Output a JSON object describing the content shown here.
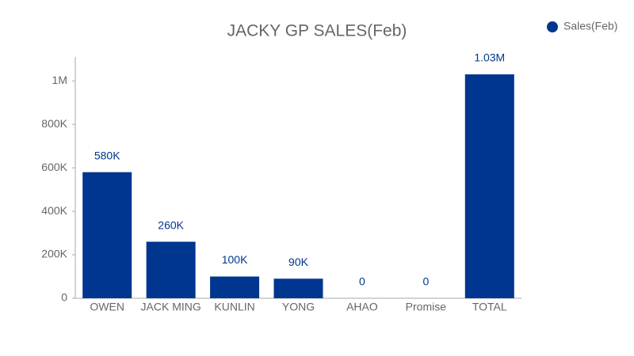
{
  "chart_data": {
    "type": "bar",
    "title": "JACKY GP SALES(Feb)",
    "categories": [
      "OWEN",
      "JACK MING",
      "KUNLIN",
      "YONG",
      "AHAO",
      "Promise",
      "TOTAL"
    ],
    "series": [
      {
        "name": "Sales(Feb)",
        "color": "#00368f",
        "values": [
          580000,
          260000,
          100000,
          90000,
          0,
          0,
          1030000
        ],
        "value_labels": [
          "580K",
          "260K",
          "100K",
          "90K",
          "0",
          "0",
          "1.03M"
        ]
      }
    ],
    "ylim": [
      0,
      1110000
    ],
    "yticks": [
      0,
      {
        "value": 200000,
        "label": "200K"
      },
      {
        "value": 400000,
        "label": "400K"
      },
      {
        "value": 600000,
        "label": "600K"
      },
      {
        "value": 800000,
        "label": "800K"
      },
      {
        "value": 1000000,
        "label": "1M"
      }
    ],
    "legend": "top-right",
    "grid": false
  }
}
